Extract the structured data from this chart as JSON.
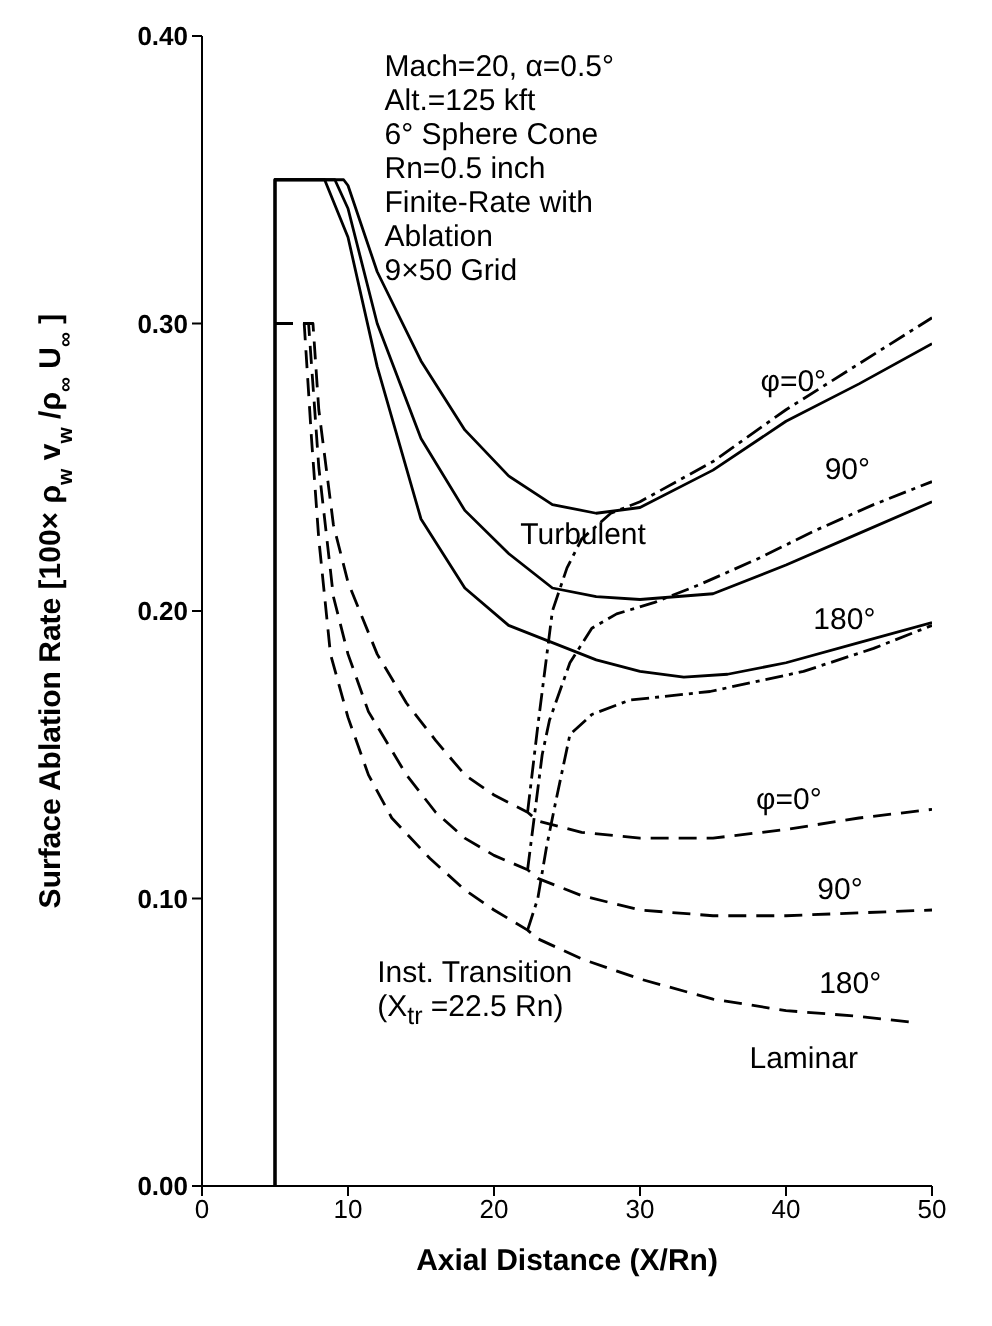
{
  "chart_data": {
    "type": "line",
    "xlabel": "Axial Distance (X/Rn)",
    "ylabel": "Surface Ablation Rate [100× ρ$_{w}$ v$_{w}$ /ρ$_{∞}$ U$_{∞}$]",
    "xlim": [
      0,
      50
    ],
    "ylim": [
      0,
      0.4
    ],
    "xticks": [
      0,
      10,
      20,
      30,
      40,
      50
    ],
    "yticks": [
      {
        "value": 0,
        "label": "0.00"
      },
      {
        "value": 0.1,
        "label": "0.10"
      },
      {
        "value": 0.2,
        "label": "0.20"
      },
      {
        "value": 0.3,
        "label": "0.30"
      },
      {
        "value": 0.4,
        "label": "0.40"
      }
    ],
    "series": [
      {
        "color": "#000000",
        "line_style": "solid",
        "x": [
          5,
          5,
          9.7,
          10,
          12,
          15,
          18,
          21,
          24,
          27,
          30,
          35,
          40,
          45,
          50
        ],
        "values": [
          0,
          0.35,
          0.35,
          0.348,
          0.318,
          0.287,
          0.263,
          0.247,
          0.237,
          0.234,
          0.236,
          0.249,
          0.266,
          0.279,
          0.293
        ]
      },
      {
        "color": "#000000",
        "line_style": "solid",
        "x": [
          5,
          5,
          9.1,
          10,
          12,
          15,
          18,
          21,
          24,
          27,
          30,
          35,
          40,
          45,
          50
        ],
        "values": [
          0,
          0.35,
          0.35,
          0.34,
          0.3,
          0.26,
          0.235,
          0.22,
          0.208,
          0.205,
          0.204,
          0.206,
          0.216,
          0.227,
          0.238
        ]
      },
      {
        "color": "#000000",
        "line_style": "solid",
        "x": [
          5,
          5,
          8.4,
          10,
          12,
          15,
          18,
          21,
          24,
          27,
          30,
          33,
          36,
          40,
          45,
          50
        ],
        "values": [
          0,
          0.35,
          0.35,
          0.33,
          0.285,
          0.232,
          0.208,
          0.195,
          0.189,
          0.183,
          0.179,
          0.177,
          0.178,
          0.182,
          0.189,
          0.196
        ]
      },
      {
        "color": "#000000",
        "line_style": "dashed",
        "x": [
          5,
          7.6,
          8,
          9,
          10,
          12,
          14,
          16,
          18,
          20,
          22.3,
          23,
          26,
          30,
          35,
          40,
          45,
          50
        ],
        "values": [
          0.3,
          0.3,
          0.27,
          0.23,
          0.21,
          0.185,
          0.168,
          0.155,
          0.143,
          0.136,
          0.13,
          0.127,
          0.123,
          0.121,
          0.121,
          0.124,
          0.128,
          0.131
        ]
      },
      {
        "color": "#000000",
        "line_style": "dashed",
        "x": [
          5,
          7.3,
          8,
          9,
          10,
          11.4,
          14,
          16,
          18,
          20,
          22.3,
          23,
          26,
          30,
          35,
          40,
          45,
          50
        ],
        "values": [
          0.3,
          0.3,
          0.25,
          0.205,
          0.185,
          0.165,
          0.143,
          0.13,
          0.121,
          0.115,
          0.11,
          0.107,
          0.101,
          0.096,
          0.094,
          0.094,
          0.095,
          0.096
        ]
      },
      {
        "color": "#000000",
        "line_style": "dashed",
        "x": [
          5,
          7,
          7.5,
          8,
          8.8,
          10,
          11.4,
          13,
          15.6,
          18,
          20,
          22.3,
          23,
          26,
          30,
          35,
          40,
          45,
          48.5
        ],
        "values": [
          0.3,
          0.3,
          0.26,
          0.225,
          0.185,
          0.163,
          0.143,
          0.128,
          0.114,
          0.103,
          0.096,
          0.089,
          0.086,
          0.079,
          0.072,
          0.065,
          0.061,
          0.059,
          0.057
        ]
      },
      {
        "color": "#000000",
        "line_style": "dashdot",
        "x": [
          22.3,
          23,
          23.5,
          24,
          25,
          26,
          28,
          30,
          35,
          40,
          45,
          50
        ],
        "values": [
          0.13,
          0.16,
          0.18,
          0.2,
          0.215,
          0.225,
          0.234,
          0.238,
          0.252,
          0.27,
          0.286,
          0.302
        ]
      },
      {
        "color": "#000000",
        "line_style": "dashdot",
        "x": [
          22.3,
          22.8,
          23.3,
          23.8,
          25.2,
          26.7,
          28.4,
          31,
          34,
          38,
          42,
          46,
          50
        ],
        "values": [
          0.11,
          0.13,
          0.15,
          0.162,
          0.182,
          0.194,
          0.199,
          0.203,
          0.209,
          0.218,
          0.228,
          0.237,
          0.245
        ]
      },
      {
        "color": "#000000",
        "line_style": "dashdot",
        "x": [
          22.3,
          23,
          23.6,
          24.2,
          25.2,
          26.7,
          29.3,
          34.8,
          41.2,
          46,
          50
        ],
        "values": [
          0.089,
          0.1,
          0.118,
          0.133,
          0.157,
          0.164,
          0.169,
          0.172,
          0.179,
          0.187,
          0.195
        ]
      }
    ],
    "annotations": [
      "Mach=20, α=0.5°\nAlt.=125 kft\n6° Sphere Cone\nRn=0.5 inch\nFinite-Rate with\nAblation\n9×50 Grid",
      "Turbulent",
      "Inst. Transition\n(X$_{tr}$ =22.5 Rn)",
      "Laminar",
      "φ=0°",
      "90°",
      "180°",
      "φ=0°",
      "90°",
      "180°"
    ]
  }
}
